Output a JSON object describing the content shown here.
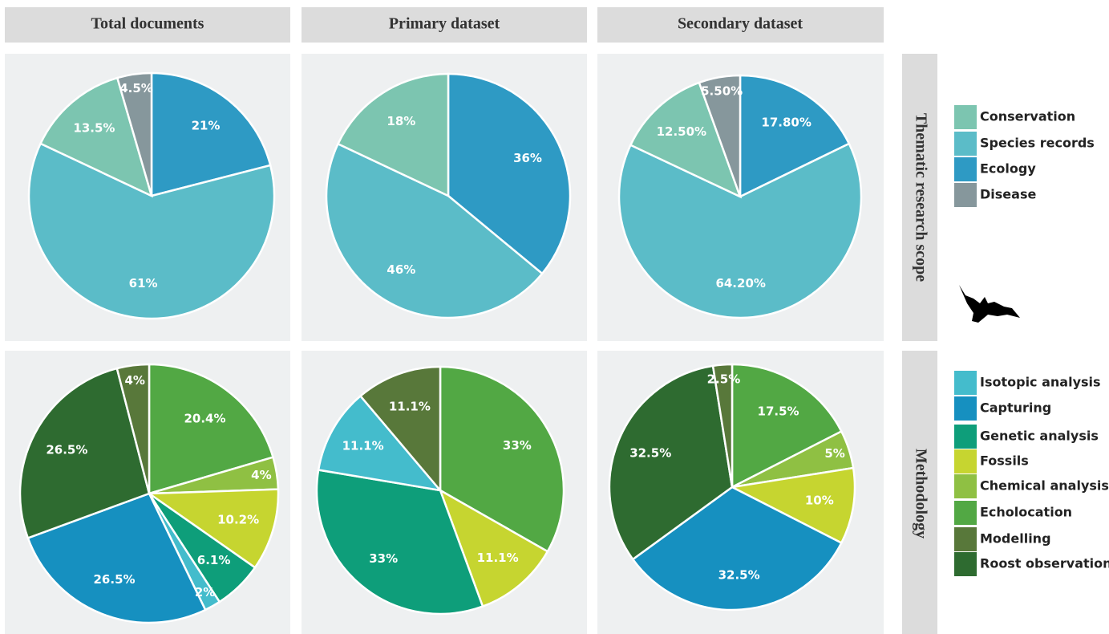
{
  "column_headers": [
    "Total documents",
    "Primary dataset",
    "Secondary dataset"
  ],
  "row_labels": [
    "Thematic research scope",
    "Methodology"
  ],
  "legends": [
    [
      {
        "name": "Conservation",
        "color": "#7cc5b0"
      },
      {
        "name": "Species records",
        "color": "#5bbcc8"
      },
      {
        "name": "Ecology",
        "color": "#2e9ac4"
      },
      {
        "name": "Disease",
        "color": "#86979c"
      }
    ],
    [
      {
        "name": "Isotopic analysis",
        "color": "#44bccc"
      },
      {
        "name": "Capturing",
        "color": "#1690c0"
      },
      {
        "name": "Genetic analysis",
        "color": "#0e9e7a"
      },
      {
        "name": "Fossils",
        "color": "#c6d530"
      },
      {
        "name": "Chemical analysis",
        "color": "#8fc043"
      },
      {
        "name": "Echolocation",
        "color": "#52a844"
      },
      {
        "name": "Modelling",
        "color": "#58783a"
      },
      {
        "name": "Roost observation",
        "color": "#2e6b30"
      }
    ]
  ],
  "chart_data": [
    {
      "type": "pie",
      "categories": [
        "Ecology",
        "Species records",
        "Conservation",
        "Disease"
      ],
      "values": [
        21,
        61,
        13.5,
        4.5
      ],
      "value_labels": [
        "21%",
        "61%",
        "13.5%",
        "4.5%"
      ]
    },
    {
      "type": "pie",
      "categories": [
        "Ecology",
        "Species records",
        "Conservation"
      ],
      "values": [
        36,
        46,
        18
      ],
      "value_labels": [
        "36%",
        "46%",
        "18%"
      ]
    },
    {
      "type": "pie",
      "categories": [
        "Ecology",
        "Species records",
        "Conservation",
        "Disease"
      ],
      "values": [
        17.8,
        64.2,
        12.5,
        5.5
      ],
      "value_labels": [
        "17.80%",
        "64.20%",
        "12.50%",
        "5.50%"
      ]
    },
    {
      "type": "pie",
      "categories": [
        "Echolocation",
        "Chemical analysis",
        "Fossils",
        "Genetic analysis",
        "Isotopic analysis",
        "Capturing",
        "Roost observation",
        "Modelling"
      ],
      "values": [
        20.4,
        4,
        10.2,
        6.1,
        2,
        26.5,
        26.5,
        4
      ],
      "value_labels": [
        "20.4%",
        "4%",
        "10.2%",
        "6.1%",
        "2%",
        "26.5%",
        "26.5%",
        "4%"
      ]
    },
    {
      "type": "pie",
      "categories": [
        "Echolocation",
        "Fossils",
        "Genetic analysis",
        "Isotopic analysis",
        "Modelling"
      ],
      "values": [
        33,
        11.1,
        33,
        11.1,
        11.1
      ],
      "value_labels": [
        "33%",
        "11.1%",
        "33%",
        "11.1%",
        "11.1%"
      ]
    },
    {
      "type": "pie",
      "categories": [
        "Echolocation",
        "Chemical analysis",
        "Fossils",
        "Capturing",
        "Roost observation",
        "Modelling"
      ],
      "values": [
        17.5,
        5,
        10,
        32.5,
        32.5,
        2.5
      ],
      "value_labels": [
        "17.5%",
        "5%",
        "10%",
        "32.5%",
        "32.5%",
        "2.5%"
      ]
    }
  ]
}
